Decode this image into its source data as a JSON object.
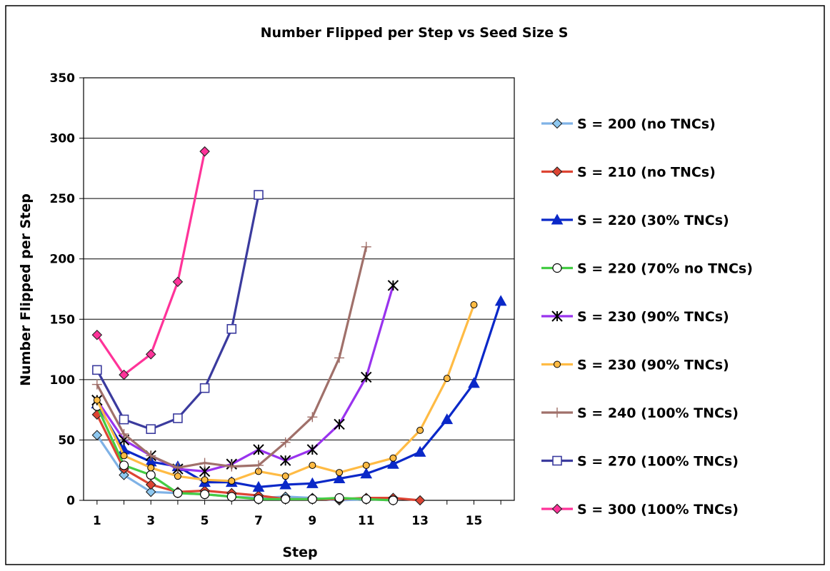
{
  "chart_data": {
    "type": "line",
    "title": "Number Flipped per Step vs Seed Size S",
    "xlabel": "Step",
    "ylabel": "Number Flipped per Step",
    "xlim": [
      0.5,
      16.5
    ],
    "ylim": [
      0,
      350
    ],
    "x_ticks": [
      1,
      3,
      5,
      7,
      9,
      11,
      13,
      15
    ],
    "y_ticks": [
      0,
      50,
      100,
      150,
      200,
      250,
      300,
      350
    ],
    "grid": "horizontal",
    "legend": "right",
    "series": [
      {
        "name": "S = 200 (no TNCs)",
        "color": "#7fb2e6",
        "marker": "diamond",
        "marker_fill": "#8ec8f0",
        "x": [
          1,
          2,
          3,
          4,
          5,
          6,
          7,
          8,
          9,
          10,
          11,
          12
        ],
        "y": [
          54,
          21,
          7,
          6,
          5,
          3,
          2,
          3,
          2,
          0,
          1,
          0
        ]
      },
      {
        "name": "S = 210 (no TNCs)",
        "color": "#dd4433",
        "marker": "diamond",
        "marker_fill": "#dd4433",
        "x": [
          1,
          2,
          3,
          4,
          5,
          6,
          7,
          8,
          9,
          10,
          11,
          12,
          13
        ],
        "y": [
          71,
          26,
          13,
          7,
          8,
          6,
          4,
          1,
          1,
          1,
          2,
          2,
          0
        ]
      },
      {
        "name": "S = 220 (30% TNCs)",
        "color": "#0a28c8",
        "marker": "triangle",
        "marker_fill": "#0a28c8",
        "x": [
          1,
          2,
          3,
          4,
          5,
          6,
          7,
          8,
          9,
          10,
          11,
          12,
          13,
          14,
          15,
          16
        ],
        "y": [
          80,
          42,
          32,
          28,
          15,
          15,
          11,
          13,
          14,
          18,
          22,
          30,
          40,
          67,
          97,
          165
        ]
      },
      {
        "name": "S = 220 (70% no TNCs)",
        "color": "#44cc44",
        "marker": "circle",
        "marker_fill": "#ffffff",
        "x": [
          1,
          2,
          3,
          4,
          5,
          6,
          7,
          8,
          9,
          10,
          11,
          12
        ],
        "y": [
          78,
          29,
          21,
          6,
          5,
          3,
          1,
          1,
          1,
          2,
          1,
          0
        ]
      },
      {
        "name": "S = 230 (90% TNCs)",
        "color": "#9933ee",
        "marker": "asterisk",
        "marker_fill": "#000000",
        "x": [
          1,
          2,
          3,
          4,
          5,
          6,
          7,
          8,
          9,
          10,
          11,
          12
        ],
        "y": [
          83,
          50,
          37,
          26,
          24,
          30,
          42,
          33,
          42,
          63,
          102,
          178
        ]
      },
      {
        "name": "S = 230 (90% TNCs)",
        "color": "#ffbb44",
        "marker": "circle-small",
        "marker_fill": "#ffbb44",
        "x": [
          1,
          2,
          3,
          4,
          5,
          6,
          7,
          8,
          9,
          10,
          11,
          12,
          13,
          14,
          15
        ],
        "y": [
          83,
          37,
          27,
          20,
          17,
          16,
          24,
          20,
          29,
          23,
          29,
          35,
          58,
          101,
          162
        ]
      },
      {
        "name": "S = 240 (100% TNCs)",
        "color": "#a0706a",
        "marker": "plus",
        "marker_fill": "#a0706a",
        "x": [
          1,
          2,
          3,
          4,
          5,
          6,
          7,
          8,
          9,
          10,
          11
        ],
        "y": [
          96,
          55,
          37,
          27,
          31,
          28,
          29,
          48,
          69,
          118,
          210
        ]
      },
      {
        "name": "S = 270 (100% TNCs)",
        "color": "#3b3b9e",
        "marker": "square",
        "marker_fill": "#ffffff",
        "x": [
          1,
          2,
          3,
          4,
          5,
          6,
          7
        ],
        "y": [
          108,
          67,
          59,
          68,
          93,
          142,
          253
        ]
      },
      {
        "name": "S = 300 (100% TNCs)",
        "color": "#ff3399",
        "marker": "diamond",
        "marker_fill": "#ff3399",
        "x": [
          1,
          2,
          3,
          4,
          5
        ],
        "y": [
          137,
          104,
          121,
          181,
          289
        ]
      }
    ]
  }
}
